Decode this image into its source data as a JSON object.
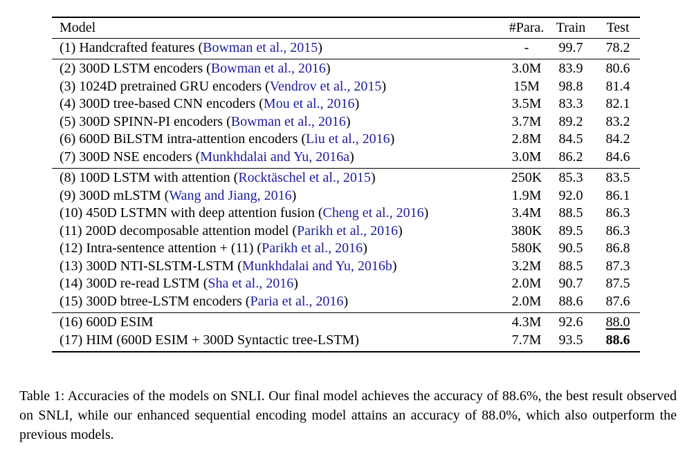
{
  "table": {
    "headers": {
      "model": "Model",
      "para": "#Para.",
      "train": "Train",
      "test": "Test"
    },
    "groups": [
      {
        "rows": [
          {
            "model": "(1) Handcrafted features (",
            "cite": "Bowman et al., 2015",
            "close": ")",
            "para": "-",
            "train": "99.7",
            "test": "78.2"
          }
        ]
      },
      {
        "rows": [
          {
            "model": "(2) 300D LSTM encoders (",
            "cite": "Bowman et al., 2016",
            "close": ")",
            "para": "3.0M",
            "train": "83.9",
            "test": "80.6"
          },
          {
            "model": "(3) 1024D pretrained GRU encoders (",
            "cite": "Vendrov et al., 2015",
            "close": ")",
            "para": "15M",
            "train": "98.8",
            "test": "81.4"
          },
          {
            "model": "(4) 300D tree-based CNN encoders (",
            "cite": "Mou et al., 2016",
            "close": ")",
            "para": "3.5M",
            "train": "83.3",
            "test": "82.1"
          },
          {
            "model": "(5) 300D SPINN-PI encoders (",
            "cite": "Bowman et al., 2016",
            "close": ")",
            "para": "3.7M",
            "train": "89.2",
            "test": "83.2"
          },
          {
            "model": "(6) 600D BiLSTM intra-attention encoders (",
            "cite": "Liu et al., 2016",
            "close": ")",
            "para": "2.8M",
            "train": "84.5",
            "test": "84.2"
          },
          {
            "model": "(7) 300D NSE encoders (",
            "cite": "Munkhdalai and Yu, 2016a",
            "close": ")",
            "para": "3.0M",
            "train": "86.2",
            "test": "84.6"
          }
        ]
      },
      {
        "rows": [
          {
            "model": "(8) 100D LSTM with attention (",
            "cite": "Rocktäschel et al., 2015",
            "close": ")",
            "para": "250K",
            "train": "85.3",
            "test": "83.5"
          },
          {
            "model": "(9) 300D mLSTM (",
            "cite": "Wang and Jiang, 2016",
            "close": ")",
            "para": "1.9M",
            "train": "92.0",
            "test": "86.1"
          },
          {
            "model": "(10) 450D LSTMN with deep attention fusion (",
            "cite": "Cheng et al., 2016",
            "close": ")",
            "para": "3.4M",
            "train": "88.5",
            "test": "86.3"
          },
          {
            "model": "(11) 200D decomposable attention model (",
            "cite": "Parikh et al., 2016",
            "close": ")",
            "para": "380K",
            "train": "89.5",
            "test": "86.3"
          },
          {
            "model": "(12) Intra-sentence attention + (11) (",
            "cite": "Parikh et al., 2016",
            "close": ")",
            "para": "580K",
            "train": "90.5",
            "test": "86.8"
          },
          {
            "model": "(13) 300D NTI-SLSTM-LSTM (",
            "cite": "Munkhdalai and Yu, 2016b",
            "close": ")",
            "para": "3.2M",
            "train": "88.5",
            "test": "87.3"
          },
          {
            "model": "(14) 300D re-read LSTM (",
            "cite": "Sha et al., 2016",
            "close": ")",
            "para": "2.0M",
            "train": "90.7",
            "test": "87.5"
          },
          {
            "model": "(15) 300D btree-LSTM encoders (",
            "cite": "Paria et al., 2016",
            "close": ")",
            "para": "2.0M",
            "train": "88.6",
            "test": "87.6"
          }
        ]
      },
      {
        "rows": [
          {
            "model": "(16) 600D ESIM",
            "cite": "",
            "close": "",
            "para": "4.3M",
            "train": "92.6",
            "test": "88.0",
            "style": "underline"
          },
          {
            "model": "(17) HIM (600D ESIM + 300D Syntactic tree-LSTM)",
            "cite": "",
            "close": "",
            "para": "7.7M",
            "train": "93.5",
            "test": "88.6",
            "style": "bold"
          }
        ]
      }
    ]
  },
  "caption": "Table 1: Accuracies of the models on SNLI. Our final model achieves the accuracy of 88.6%, the best result observed on SNLI, while our enhanced sequential encoding model attains an accuracy of 88.0%, which also outperform the previous models."
}
